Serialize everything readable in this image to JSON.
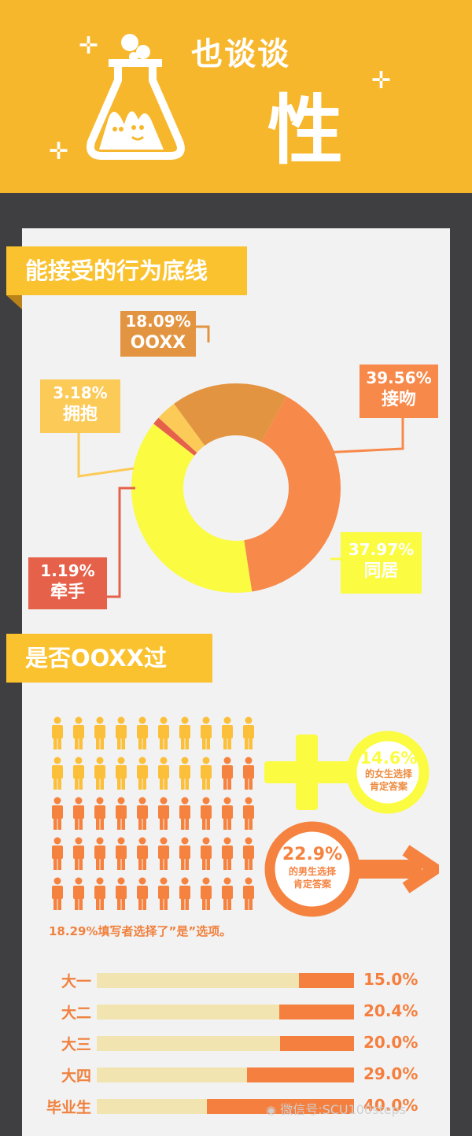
{
  "header": {
    "title_small": "也谈谈",
    "title_big": "性",
    "icon": "flask-icon"
  },
  "section1": {
    "title": "能接受的行为底线"
  },
  "section2": {
    "title": "是否OOXX过"
  },
  "chart_data": [
    {
      "type": "pie",
      "title": "能接受的行为底线",
      "slices": [
        {
          "label": "接吻",
          "value": 39.56,
          "display": "39.56%",
          "color": "#f7894a"
        },
        {
          "label": "同居",
          "value": 37.97,
          "display": "37.97%",
          "color": "#fbfb42"
        },
        {
          "label": "牵手",
          "value": 1.19,
          "display": "1.19%",
          "color": "#e5614a"
        },
        {
          "label": "拥抱",
          "value": 3.18,
          "display": "3.18%",
          "color": "#fbca57"
        },
        {
          "label": "OOXX",
          "value": 18.09,
          "display": "18.09%",
          "color": "#e39440"
        }
      ]
    },
    {
      "type": "bar",
      "title": "是否OOXX过",
      "categories": [
        "大一",
        "大二",
        "大三",
        "大四",
        "毕业生"
      ],
      "values": [
        15.0,
        20.4,
        20.0,
        29.0,
        40.0
      ],
      "display": [
        "15.0%",
        "20.4%",
        "20.0%",
        "29.0%",
        "40.0%"
      ],
      "xlim": [
        0,
        100
      ]
    }
  ],
  "pictogram": {
    "total": 100,
    "highlighted": 18,
    "highlight_color": "#fbbf3a",
    "base_color": "#f5823f",
    "caption": "18.29%填写者选择了”是”选项。"
  },
  "female": {
    "percent": "14.6%",
    "line1": "的女生选择",
    "line2": "肯定答案",
    "icon": "female-symbol-icon",
    "color": "#fbfb42"
  },
  "male": {
    "percent": "22.9%",
    "line1": "的男生选择",
    "line2": "肯定答案",
    "icon": "male-symbol-icon",
    "color": "#f5823f"
  },
  "watermark": "微信号:SCU100steps"
}
